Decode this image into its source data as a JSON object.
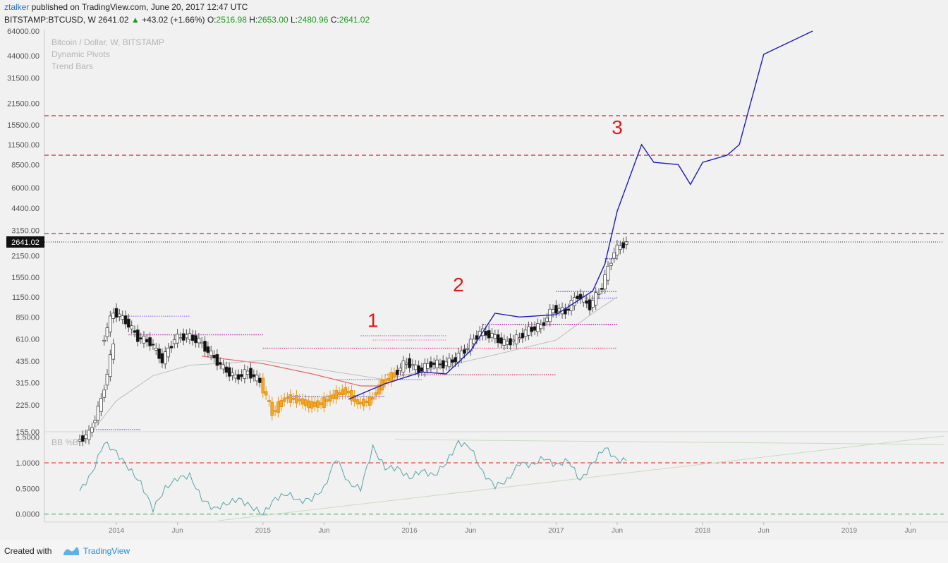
{
  "header": {
    "user": "ztalker",
    "published": " published on TradingView.com, June 20, 2017 12:47 UTC",
    "symbol": "BITSTAMP:BTCUSD, W",
    "price": "2641.02",
    "change": "+43.02 (+1.66%)",
    "o_label": "O:",
    "o_value": "2516.98",
    "h_label": "H:",
    "h_value": "2653.00",
    "l_label": "L:",
    "l_value": "2480.96",
    "c_label": "C:",
    "c_value": "2641.02"
  },
  "legend": [
    "Bitcoin / Dollar, W, BITSTAMP",
    "Dynamic Pivots",
    "Trend Bars"
  ],
  "colors": {
    "projection": "#1c1cb4",
    "resistance": "#e02020",
    "ema": "#e06868",
    "bb_line": "#5aa3a8",
    "up_candle": "#ffffff",
    "down_candle": "#111111",
    "orange_candle": "#f5a623"
  },
  "chart_data": [
    {
      "type": "line",
      "title": "",
      "scale": "log",
      "y_tick_labels": [
        "64000.00",
        "44000.00",
        "31500.00",
        "21500.00",
        "15500.00",
        "11500.00",
        "8500.00",
        "6000.00",
        "4400.00",
        "3150.00",
        "2150.00",
        "1550.00",
        "1150.00",
        "850.00",
        "610.00",
        "435.00",
        "315.00",
        "225.00",
        "155.00"
      ],
      "x_tick_labels": [
        "2014",
        "Jun",
        "2015",
        "Jun",
        "2016",
        "Jun",
        "2017",
        "Jun",
        "2018",
        "Jun",
        "2019",
        "Jun"
      ],
      "current_price_label": "2641.02",
      "current_price": 2641.02,
      "resistance_levels": [
        17800,
        9800,
        3000
      ],
      "annotations": [
        {
          "text": "1",
          "x": "2015-10",
          "y": 730
        },
        {
          "text": "2",
          "x": "2016-05",
          "y": 1250
        },
        {
          "text": "3",
          "x": "2017-06",
          "y": 13500
        }
      ],
      "series": [
        {
          "values": [
            [
              "2015-08-01",
              245
            ],
            [
              "2015-11-01",
              310
            ],
            [
              "2016-02-01",
              370
            ],
            [
              "2016-04-01",
              360
            ],
            [
              "2016-06-01",
              510
            ],
            [
              "2016-08-01",
              900
            ],
            [
              "2016-10-01",
              850
            ],
            [
              "2017-01-01",
              880
            ],
            [
              "2017-04-01",
              1260
            ],
            [
              "2017-05-01",
              1900
            ],
            [
              "2017-06-01",
              4200
            ],
            [
              "2017-08-01",
              11500
            ],
            [
              "2017-09-01",
              8800
            ],
            [
              "2017-11-01",
              8500
            ],
            [
              "2017-12-01",
              6300
            ],
            [
              "2018-01-01",
              8800
            ],
            [
              "2018-03-01",
              9800
            ],
            [
              "2018-04-01",
              11500
            ],
            [
              "2018-06-01",
              45000
            ],
            [
              "2018-10-01",
              64000
            ]
          ]
        },
        {
          "candles": [
            [
              "2013-10",
              130,
              145
            ],
            [
              "2013-11",
              145,
              240
            ],
            [
              "2013-12",
              240,
              560
            ],
            [
              "2013-12",
              560,
              920
            ],
            [
              "2014-01",
              920,
              800
            ],
            [
              "2014-02",
              800,
              620
            ],
            [
              "2014-03",
              620,
              580
            ],
            [
              "2014-04",
              580,
              440
            ],
            [
              "2014-05",
              440,
              610
            ],
            [
              "2014-06",
              610,
              640
            ],
            [
              "2014-07",
              640,
              590
            ],
            [
              "2014-08",
              590,
              480
            ],
            [
              "2014-09",
              480,
              390
            ],
            [
              "2014-10",
              390,
              340
            ],
            [
              "2014-11",
              340,
              370
            ],
            [
              "2014-12",
              370,
              320
            ],
            [
              "2015-01",
              320,
              200
            ],
            [
              "2015-02",
              200,
              250
            ],
            [
              "2015-03",
              250,
              245
            ],
            [
              "2015-04",
              245,
              225
            ],
            [
              "2015-05",
              225,
              230
            ],
            [
              "2015-06",
              230,
              260
            ],
            [
              "2015-07",
              260,
              280
            ],
            [
              "2015-08",
              280,
              230
            ],
            [
              "2015-09",
              230,
              240
            ],
            [
              "2015-10",
              240,
              315
            ],
            [
              "2015-11",
              315,
              360
            ],
            [
              "2015-12",
              360,
              430
            ],
            [
              "2016-01",
              430,
              380
            ],
            [
              "2016-02",
              380,
              420
            ],
            [
              "2016-03",
              420,
              415
            ],
            [
              "2016-04",
              415,
              450
            ],
            [
              "2016-05",
              450,
              540
            ],
            [
              "2016-06",
              540,
              680
            ],
            [
              "2016-07",
              680,
              640
            ],
            [
              "2016-08",
              640,
              570
            ],
            [
              "2016-09",
              570,
              610
            ],
            [
              "2016-10",
              610,
              700
            ],
            [
              "2016-11",
              700,
              740
            ],
            [
              "2016-12",
              740,
              960
            ],
            [
              "2017-01",
              960,
              920
            ],
            [
              "2017-02",
              920,
              1180
            ],
            [
              "2017-03",
              1180,
              1000
            ],
            [
              "2017-04",
              1000,
              1350
            ],
            [
              "2017-05",
              1350,
              2300
            ],
            [
              "2017-06",
              2300,
              2641
            ]
          ]
        }
      ]
    },
    {
      "type": "line",
      "title": "BB %B",
      "y_tick_labels": [
        "1.5000",
        "1.0000",
        "0.5000",
        "0.0000"
      ],
      "ylim": [
        -0.1,
        1.55
      ],
      "reference_levels": [
        1.0,
        0.0
      ],
      "series": [
        {
          "values": [
            [
              "2013-10",
              0.45
            ],
            [
              "2013-11",
              0.8
            ],
            [
              "2013-12",
              1.4
            ],
            [
              "2014-01",
              1.2
            ],
            [
              "2014-02",
              0.9
            ],
            [
              "2014-03",
              0.6
            ],
            [
              "2014-04",
              0.1
            ],
            [
              "2014-05",
              0.5
            ],
            [
              "2014-06",
              0.7
            ],
            [
              "2014-07",
              0.75
            ],
            [
              "2014-08",
              0.3
            ],
            [
              "2014-09",
              0.1
            ],
            [
              "2014-10",
              0.2
            ],
            [
              "2014-11",
              0.3
            ],
            [
              "2014-12",
              0.15
            ],
            [
              "2015-01",
              0.0
            ],
            [
              "2015-02",
              0.3
            ],
            [
              "2015-03",
              0.4
            ],
            [
              "2015-04",
              0.25
            ],
            [
              "2015-05",
              0.3
            ],
            [
              "2015-06",
              0.5
            ],
            [
              "2015-07",
              1.1
            ],
            [
              "2015-08",
              0.6
            ],
            [
              "2015-09",
              0.5
            ],
            [
              "2015-10",
              1.3
            ],
            [
              "2015-11",
              0.9
            ],
            [
              "2015-12",
              0.9
            ],
            [
              "2016-01",
              0.7
            ],
            [
              "2016-02",
              0.85
            ],
            [
              "2016-03",
              0.75
            ],
            [
              "2016-04",
              1.0
            ],
            [
              "2016-05",
              1.4
            ],
            [
              "2016-06",
              1.3
            ],
            [
              "2016-07",
              0.8
            ],
            [
              "2016-08",
              0.55
            ],
            [
              "2016-09",
              0.65
            ],
            [
              "2016-10",
              1.0
            ],
            [
              "2016-11",
              0.95
            ],
            [
              "2016-12",
              1.1
            ],
            [
              "2017-01",
              0.95
            ],
            [
              "2017-02",
              1.05
            ],
            [
              "2017-03",
              0.65
            ],
            [
              "2017-04",
              1.0
            ],
            [
              "2017-05",
              1.3
            ],
            [
              "2017-06",
              1.05
            ]
          ]
        }
      ]
    }
  ]
}
